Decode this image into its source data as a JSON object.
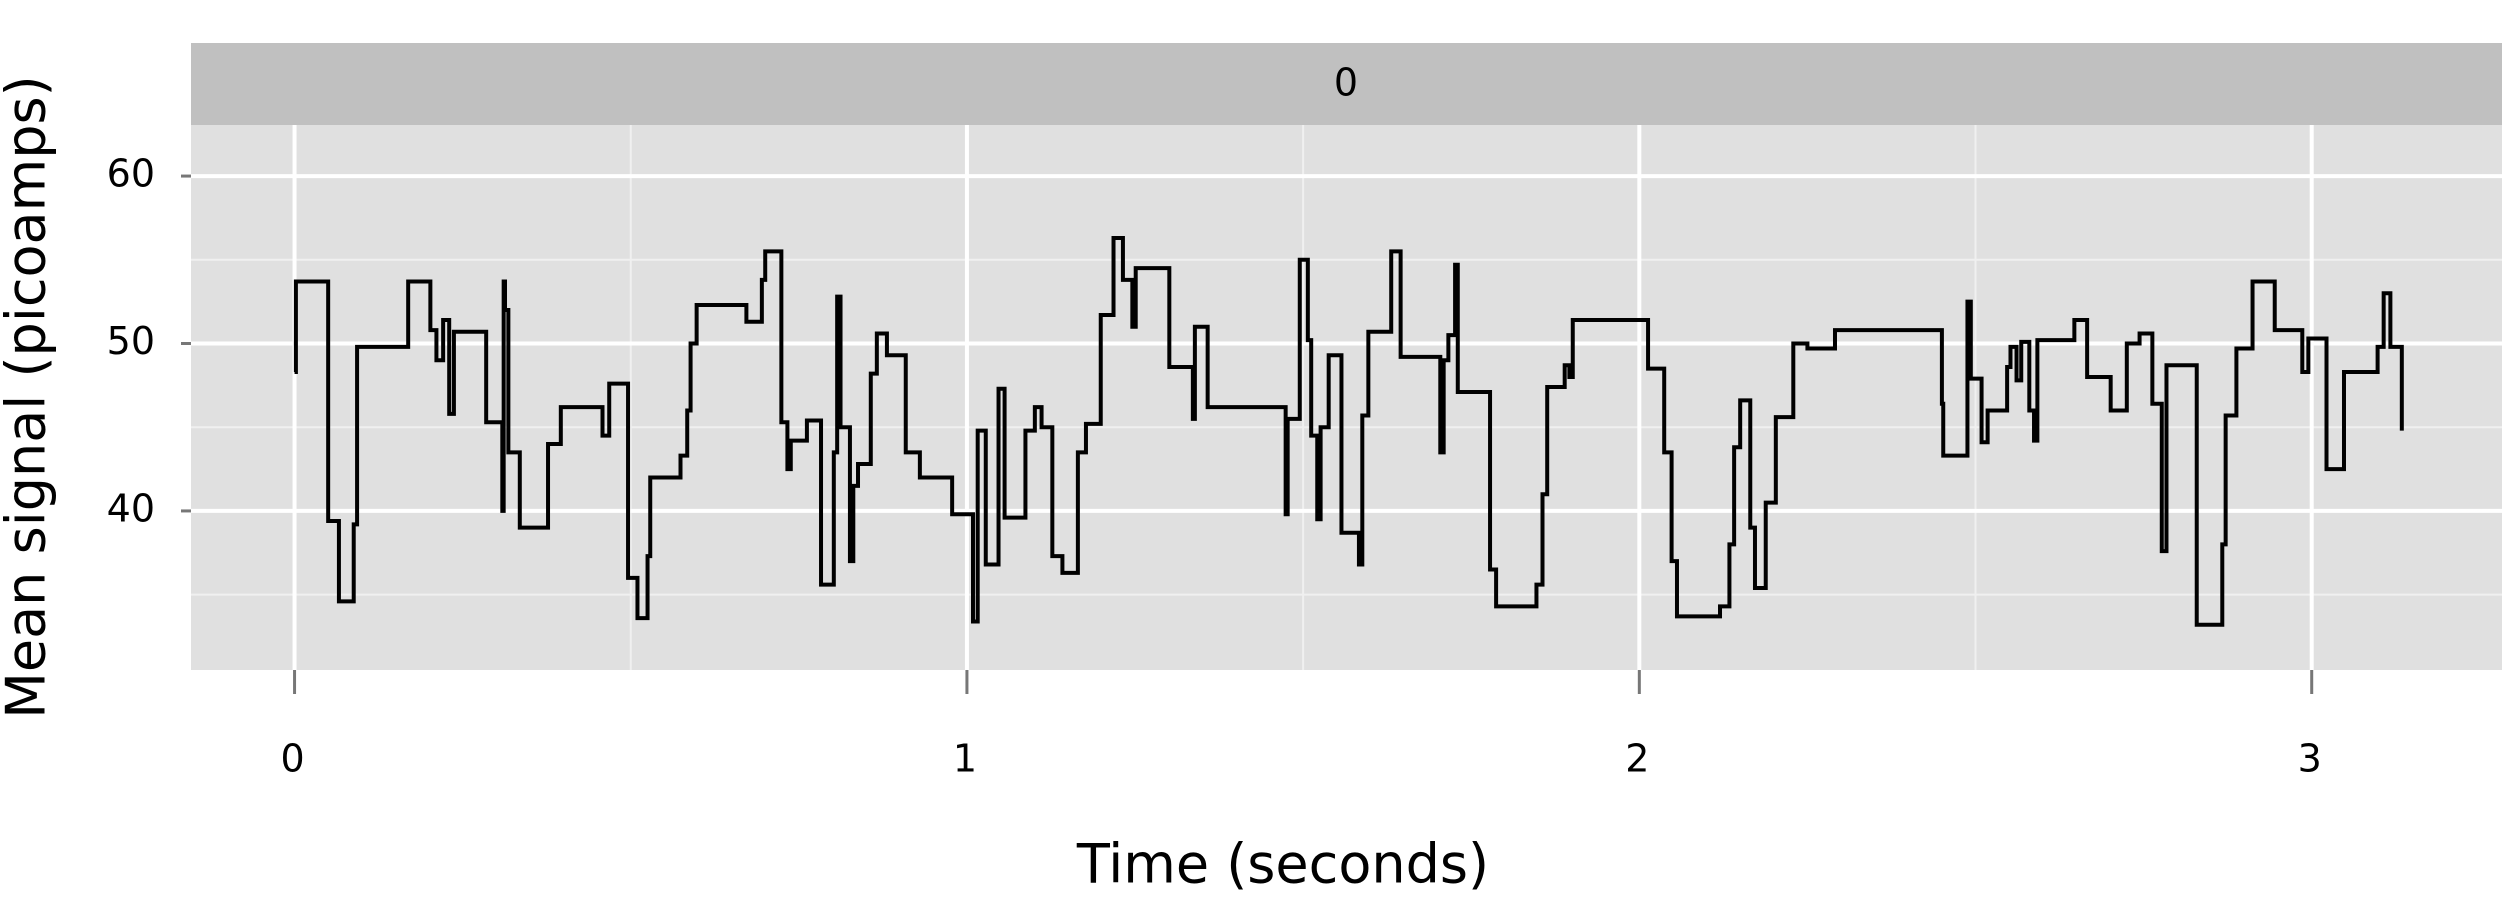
{
  "chart_data": {
    "type": "step",
    "facet_label": "0",
    "xlabel": "Time (seconds)",
    "ylabel": "Mean signal (picoamps)",
    "color": "#000000",
    "grid": true,
    "xlim": [
      -0.154,
      3.283
    ],
    "xticks": [
      0,
      1,
      2,
      3
    ],
    "minor_xticks": [
      0.5,
      1.5,
      2.5
    ],
    "ylim": [
      30.5,
      63.05
    ],
    "yticks": [
      40,
      50,
      60
    ],
    "minor_yticks": [
      35,
      45,
      55
    ],
    "x": [
      0,
      0.002,
      0.05,
      0.066,
      0.088,
      0.093,
      0.169,
      0.202,
      0.211,
      0.221,
      0.23,
      0.237,
      0.285,
      0.309,
      0.311,
      0.313,
      0.318,
      0.335,
      0.377,
      0.396,
      0.458,
      0.468,
      0.496,
      0.51,
      0.525,
      0.529,
      0.574,
      0.584,
      0.589,
      0.598,
      0.672,
      0.695,
      0.7,
      0.724,
      0.733,
      0.738,
      0.762,
      0.783,
      0.802,
      0.807,
      0.812,
      0.826,
      0.831,
      0.838,
      0.857,
      0.866,
      0.881,
      0.909,
      0.93,
      0.978,
      1.009,
      1.016,
      1.028,
      1.047,
      1.056,
      1.087,
      1.101,
      1.111,
      1.127,
      1.142,
      1.165,
      1.177,
      1.199,
      1.218,
      1.232,
      1.246,
      1.251,
      1.301,
      1.336,
      1.339,
      1.358,
      1.474,
      1.477,
      1.495,
      1.507,
      1.512,
      1.521,
      1.526,
      1.538,
      1.557,
      1.583,
      1.588,
      1.597,
      1.631,
      1.645,
      1.704,
      1.709,
      1.716,
      1.726,
      1.73,
      1.778,
      1.787,
      1.847,
      1.856,
      1.863,
      1.889,
      1.896,
      1.901,
      2.013,
      2.037,
      2.048,
      2.056,
      2.12,
      2.134,
      2.141,
      2.15,
      2.165,
      2.172,
      2.188,
      2.203,
      2.229,
      2.25,
      2.291,
      2.45,
      2.452,
      2.488,
      2.493,
      2.509,
      2.518,
      2.547,
      2.552,
      2.561,
      2.568,
      2.58,
      2.587,
      2.592,
      2.647,
      2.666,
      2.701,
      2.725,
      2.744,
      2.763,
      2.777,
      2.784,
      2.829,
      2.867,
      2.872,
      2.888,
      2.912,
      2.945,
      2.986,
      2.995,
      3.022,
      3.048,
      3.098,
      3.107,
      3.117,
      3.134
    ],
    "values": [
      48.3,
      53.7,
      39.4,
      34.6,
      39.2,
      49.8,
      53.7,
      50.8,
      49.0,
      51.4,
      45.8,
      50.7,
      45.3,
      40.0,
      53.7,
      52.0,
      43.5,
      39.0,
      44.0,
      46.2,
      44.5,
      47.6,
      36.0,
      33.6,
      37.3,
      42.0,
      43.3,
      46.0,
      50.0,
      52.3,
      51.3,
      53.8,
      55.5,
      45.3,
      42.5,
      44.2,
      45.4,
      35.6,
      43.5,
      52.8,
      45.0,
      37.0,
      41.5,
      42.8,
      48.2,
      50.6,
      49.3,
      43.5,
      42.0,
      39.8,
      33.4,
      44.8,
      36.8,
      47.3,
      39.6,
      44.8,
      46.2,
      45.0,
      37.3,
      36.3,
      43.5,
      45.2,
      51.7,
      56.3,
      53.8,
      51.0,
      54.5,
      48.6,
      45.5,
      51.0,
      46.2,
      39.8,
      45.5,
      55.0,
      50.2,
      44.5,
      39.5,
      45.0,
      49.3,
      38.7,
      36.8,
      45.7,
      50.7,
      55.5,
      49.2,
      43.5,
      49.0,
      50.5,
      54.7,
      47.1,
      36.5,
      34.3,
      35.6,
      41.0,
      47.4,
      48.7,
      48.0,
      51.4,
      48.5,
      43.5,
      37.0,
      33.7,
      34.3,
      38.0,
      43.8,
      46.6,
      39.0,
      35.4,
      40.5,
      45.6,
      50.0,
      49.7,
      50.8,
      46.4,
      43.3,
      52.5,
      47.9,
      44.1,
      46.0,
      48.6,
      49.8,
      47.8,
      50.1,
      46.0,
      44.2,
      50.2,
      51.4,
      48.0,
      46.0,
      50.0,
      50.6,
      46.4,
      37.6,
      48.7,
      33.2,
      38.0,
      45.7,
      49.7,
      53.7,
      50.8,
      48.3,
      50.3,
      42.5,
      48.3,
      49.8,
      53.0,
      49.8,
      44.8
    ]
  }
}
